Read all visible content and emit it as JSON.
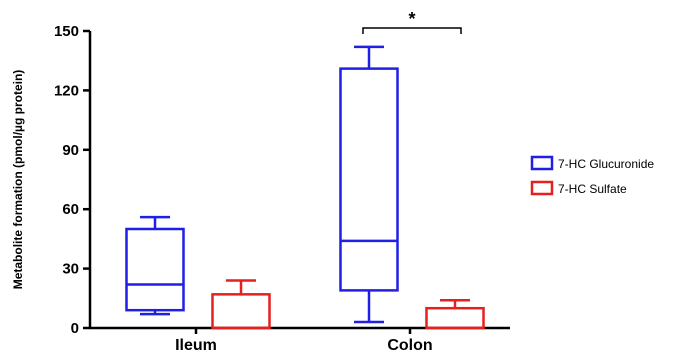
{
  "chart_data": {
    "type": "box",
    "ylabel": "Metabolite formation (pmol/µg protein)",
    "ylim": [
      0,
      150
    ],
    "yticks": [
      0,
      30,
      60,
      90,
      120,
      150
    ],
    "categories": [
      "Ileum",
      "Colon"
    ],
    "series": [
      {
        "name": "7-HC Glucuronide",
        "color": "#1f1fe6",
        "boxes": [
          {
            "category": "Ileum",
            "min": 7,
            "q1": 9,
            "median": 22,
            "q3": 50,
            "max": 56
          },
          {
            "category": "Colon",
            "min": 3,
            "q1": 19,
            "median": 44,
            "q3": 131,
            "max": 142
          }
        ]
      },
      {
        "name": "7-HC Sulfate",
        "color": "#e61f1f",
        "boxes": [
          {
            "category": "Ileum",
            "min": 0,
            "q1": 0,
            "median": 0,
            "q3": 17,
            "max": 24
          },
          {
            "category": "Colon",
            "min": 0,
            "q1": 0,
            "median": 0,
            "q3": 10,
            "max": 14
          }
        ]
      }
    ],
    "annotations": [
      {
        "text": "*",
        "category": "Colon",
        "between": [
          "7-HC Glucuronide",
          "7-HC Sulfate"
        ]
      }
    ],
    "legend_position": "right"
  }
}
